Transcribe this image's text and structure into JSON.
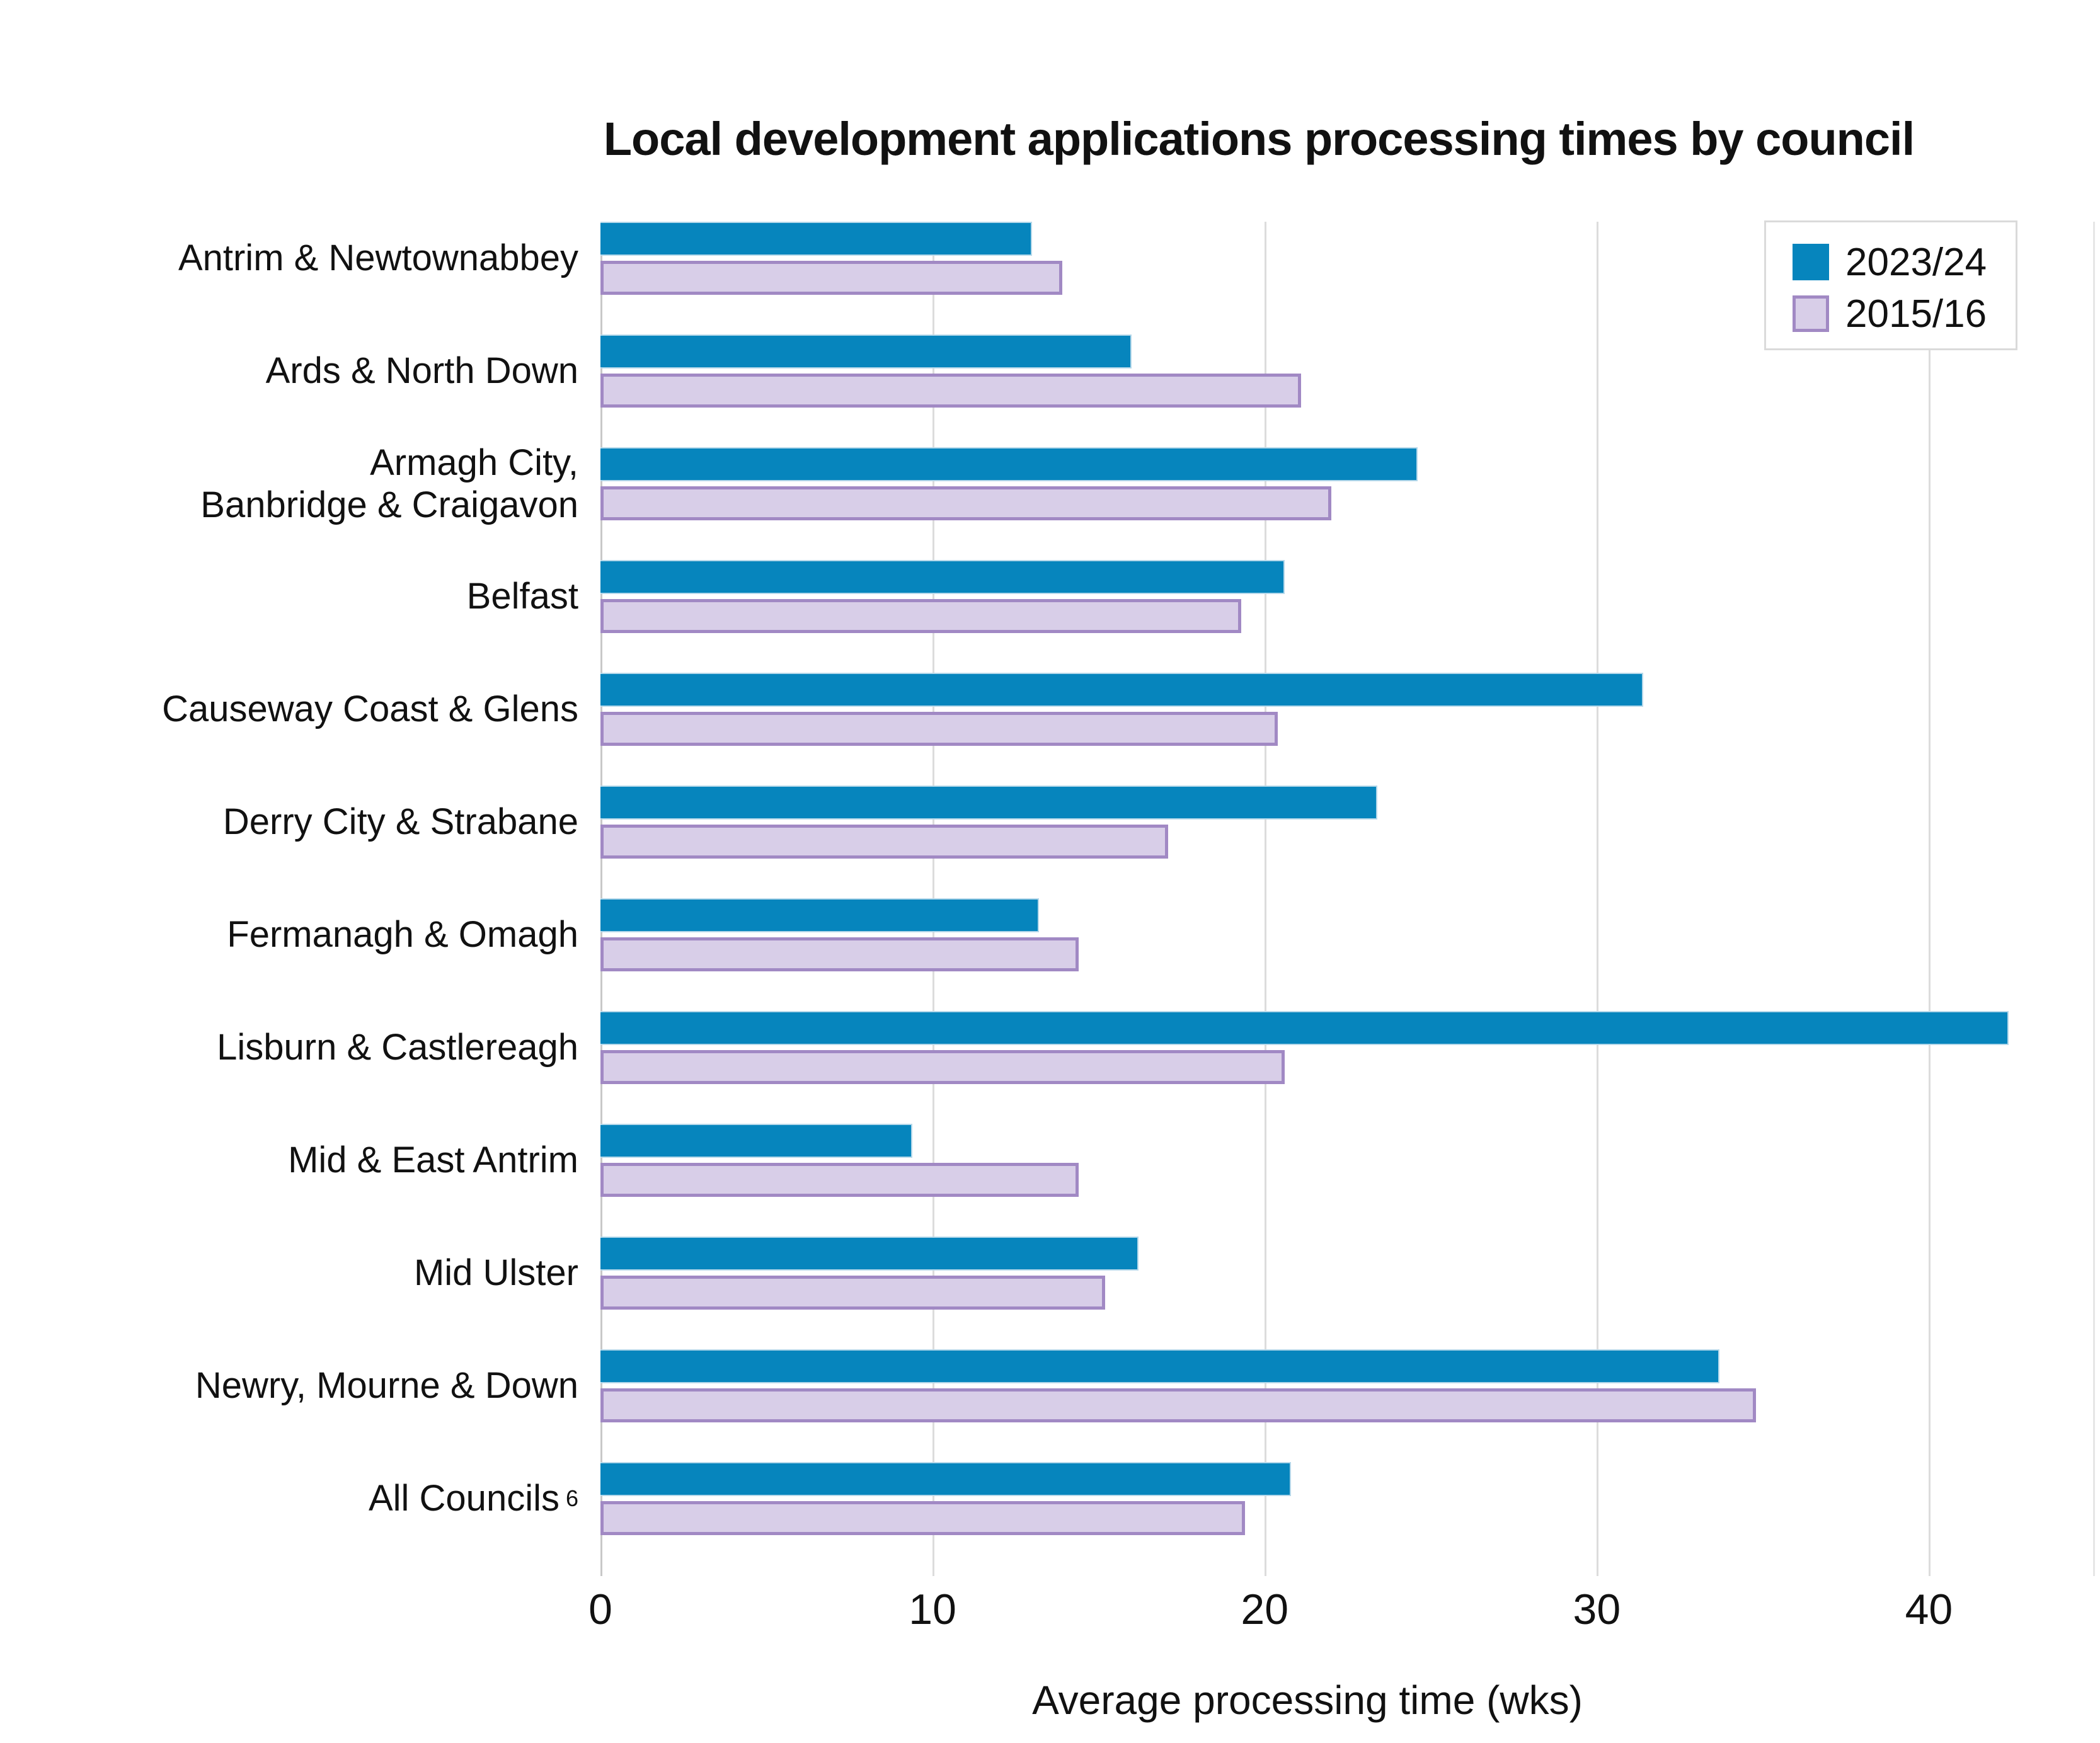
{
  "title": "Local development applications processing times by council",
  "colors": {
    "series1_fill": "#0685bd",
    "series1_edge": "#b5d8ea",
    "series2_fill": "#d8cee8",
    "series2_border": "#a189c4",
    "gridline": "#dcdcdc",
    "axis_line": "#c8c8c8",
    "text": "#111111",
    "legend_border": "#dadada"
  },
  "chart_data": {
    "type": "bar",
    "orientation": "horizontal",
    "title": "Local development applications processing times by council",
    "xlabel": "Average processing time (wks)",
    "xlim": [
      0,
      45
    ],
    "xticks": [
      0,
      10,
      20,
      30,
      40
    ],
    "grid": "vertical",
    "legend_position": "top-right",
    "categories": [
      {
        "label": "Antrim & Newtownabbey"
      },
      {
        "label": "Ards & North Down"
      },
      {
        "label": "Armagh City,\nBanbridge & Craigavon"
      },
      {
        "label": "Belfast"
      },
      {
        "label": "Causeway Coast & Glens"
      },
      {
        "label": "Derry City & Strabane"
      },
      {
        "label": "Fermanagh & Omagh"
      },
      {
        "label": "Lisburn & Castlereagh"
      },
      {
        "label": "Mid & East Antrim"
      },
      {
        "label": "Mid Ulster"
      },
      {
        "label": "Newry, Mourne & Down"
      },
      {
        "label": "All Councils",
        "footnote": "6"
      }
    ],
    "series": [
      {
        "name": "2023/24",
        "values": [
          13.0,
          16.0,
          24.6,
          20.6,
          31.4,
          23.4,
          13.2,
          42.4,
          9.4,
          16.2,
          33.7,
          20.8
        ]
      },
      {
        "name": "2015/16",
        "values": [
          13.9,
          21.1,
          22.0,
          19.3,
          20.4,
          17.1,
          14.4,
          20.6,
          14.4,
          15.2,
          34.8,
          19.4
        ]
      }
    ]
  }
}
